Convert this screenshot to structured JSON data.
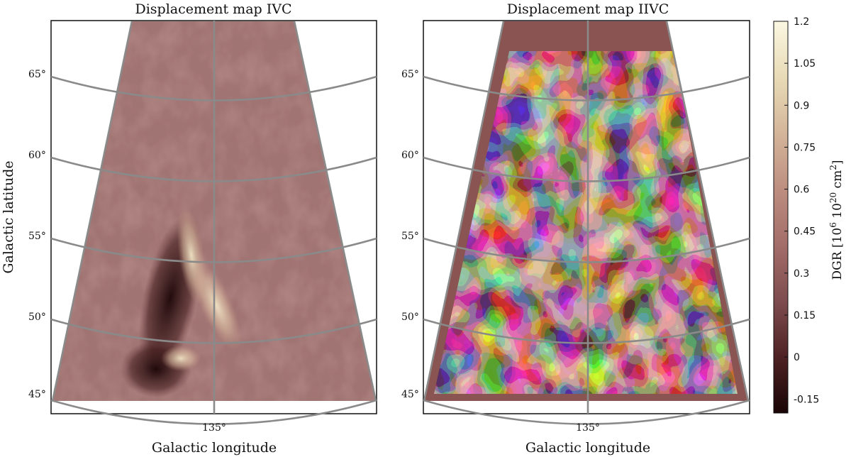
{
  "chart_data": [
    {
      "type": "heatmap",
      "title": "Displacement map IVC",
      "xlabel": "Galactic longitude",
      "ylabel": "Galactic latitude",
      "x_ticks": [
        "135°"
      ],
      "y_ticks": [
        "45°",
        "50°",
        "55°",
        "60°",
        "65°"
      ],
      "projection": "conic wedge",
      "grid": true,
      "texture": "smooth low-contrast noise with one bright / dark feature",
      "features": [
        {
          "lon_offset": -0.2,
          "lat": 52.5,
          "value": 1.0,
          "extent": "diagonal ridge"
        },
        {
          "lon_offset": -0.4,
          "lat": 49.5,
          "value": -0.15,
          "extent": "dark edge"
        }
      ],
      "mean_value": 0.2
    },
    {
      "type": "heatmap",
      "title": "Displacement map IIVC",
      "xlabel": "Galactic longitude",
      "ylabel": "",
      "x_ticks": [
        "135°"
      ],
      "y_ticks": [
        "45°",
        "50°",
        "55°",
        "60°",
        "65°"
      ],
      "projection": "conic wedge",
      "grid": true,
      "texture": "high-contrast blotchy structure",
      "mean_value": 0.2
    }
  ],
  "colorbar": {
    "label": "DGR [10",
    "label_sup1": "6",
    "label_mid": " 10",
    "label_sup2": "20",
    "label_tail": " cm",
    "label_sup3": "2",
    "label_close": "]",
    "min": -0.2,
    "max": 1.2,
    "ticks": [
      "1.2",
      "1.05",
      "0.9",
      "0.75",
      "0.6",
      "0.45",
      "0.3",
      "0.15",
      "0",
      "-0.15"
    ],
    "tick_values": [
      1.2,
      1.05,
      0.9,
      0.75,
      0.6,
      0.45,
      0.3,
      0.15,
      0.0,
      -0.15
    ],
    "colormap": [
      "#1a0506",
      "#4e2224",
      "#7e4c4e",
      "#a36d69",
      "#bd8e80",
      "#d4b59a",
      "#e8dbb6",
      "#fbf7e2"
    ]
  }
}
